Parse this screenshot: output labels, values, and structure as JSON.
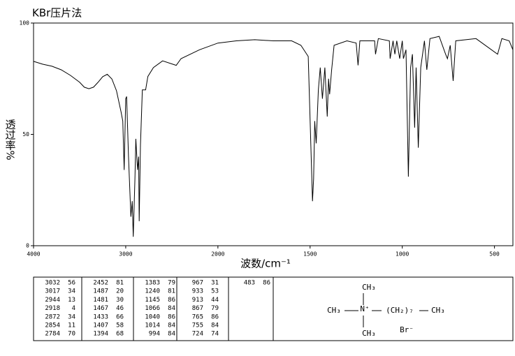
{
  "chart_data": {
    "type": "line",
    "title": "KBr压片法",
    "x_label": "波数/cm⁻¹",
    "y_label": "透过率%",
    "color": "#000000",
    "xlim": [
      4000,
      400
    ],
    "xticks": [
      4000,
      3000,
      2000,
      1500,
      1000,
      500
    ],
    "ylim": [
      0,
      100
    ],
    "yticks": [
      0,
      50,
      100
    ],
    "x": [
      4000,
      3900,
      3800,
      3700,
      3600,
      3500,
      3450,
      3400,
      3350,
      3300,
      3250,
      3200,
      3150,
      3100,
      3050,
      3032,
      3017,
      3000,
      2990,
      2970,
      2944,
      2930,
      2918,
      2900,
      2890,
      2872,
      2860,
      2854,
      2840,
      2820,
      2784,
      2760,
      2700,
      2600,
      2452,
      2400,
      2200,
      2000,
      1900,
      1800,
      1700,
      1600,
      1550,
      1510,
      1487,
      1481,
      1475,
      1467,
      1455,
      1445,
      1433,
      1420,
      1407,
      1400,
      1394,
      1383,
      1370,
      1300,
      1250,
      1240,
      1230,
      1150,
      1145,
      1130,
      1070,
      1066,
      1050,
      1040,
      1030,
      1014,
      1000,
      994,
      980,
      967,
      955,
      945,
      933,
      925,
      913,
      900,
      880,
      867,
      850,
      800,
      765,
      755,
      740,
      724,
      710,
      600,
      483,
      460,
      420,
      400
    ],
    "values": [
      82.8,
      81.5,
      80.6,
      79,
      76.5,
      73.4,
      71.2,
      70.5,
      71.2,
      73.4,
      75.9,
      77,
      74.9,
      69.6,
      60,
      56,
      34,
      66,
      67,
      40,
      13,
      20,
      4,
      30,
      48,
      34,
      40,
      11,
      45,
      70,
      70,
      76,
      80,
      83,
      81,
      84,
      88,
      91,
      92,
      92.5,
      92,
      92,
      90,
      85,
      20,
      30,
      56,
      46,
      70,
      80,
      66,
      80,
      58,
      75,
      68,
      79,
      90,
      92,
      91,
      81,
      92,
      92,
      86,
      93,
      92,
      84,
      92,
      86,
      92,
      84,
      92,
      84,
      88,
      31,
      80,
      86,
      53,
      80,
      44,
      80,
      92,
      79,
      93,
      94,
      86,
      84,
      90,
      74,
      92,
      93,
      86,
      93,
      92,
      88
    ]
  },
  "peak_table": [
    [
      [
        3032,
        56
      ],
      [
        3017,
        34
      ],
      [
        2944,
        13
      ],
      [
        2918,
        4
      ],
      [
        2872,
        34
      ],
      [
        2854,
        11
      ],
      [
        2784,
        70
      ]
    ],
    [
      [
        2452,
        81
      ],
      [
        1487,
        20
      ],
      [
        1481,
        30
      ],
      [
        1467,
        46
      ],
      [
        1433,
        66
      ],
      [
        1407,
        58
      ],
      [
        1394,
        68
      ]
    ],
    [
      [
        1383,
        79
      ],
      [
        1240,
        81
      ],
      [
        1145,
        86
      ],
      [
        1066,
        84
      ],
      [
        1040,
        86
      ],
      [
        1014,
        84
      ],
      [
        994,
        84
      ]
    ],
    [
      [
        967,
        31
      ],
      [
        933,
        53
      ],
      [
        913,
        44
      ],
      [
        867,
        79
      ],
      [
        765,
        86
      ],
      [
        755,
        84
      ],
      [
        724,
        74
      ]
    ],
    [
      [
        483,
        86
      ]
    ]
  ],
  "structure": {
    "top": "CH₃",
    "left": "CH₃",
    "n": "N⁺",
    "chain": "(CH₂)₇",
    "right": "CH₃",
    "bottom": "CH₃",
    "counterion": "Br⁻"
  }
}
